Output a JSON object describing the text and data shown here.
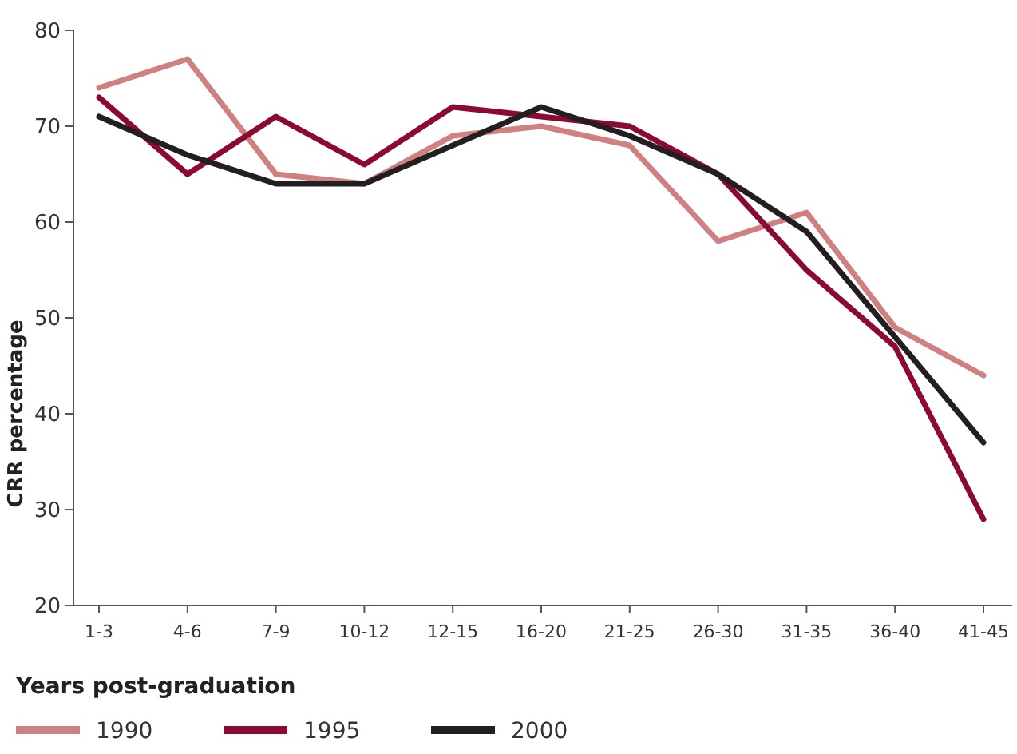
{
  "chart_data": {
    "type": "line",
    "xlabel": "Years post-graduation",
    "ylabel": "CRR percentage",
    "categories": [
      "1-3",
      "4-6",
      "7-9",
      "10-12",
      "12-15",
      "16-20",
      "21-25",
      "26-30",
      "31-35",
      "36-40",
      "41-45"
    ],
    "series": [
      {
        "name": "1990",
        "color": "#d08080",
        "values": [
          74,
          77,
          65,
          64,
          69,
          70,
          68,
          58,
          61,
          49,
          44
        ]
      },
      {
        "name": "1995",
        "color": "#8c0a32",
        "values": [
          73,
          65,
          71,
          66,
          72,
          71,
          70,
          65,
          55,
          47,
          29
        ]
      },
      {
        "name": "2000",
        "color": "#231f20",
        "values": [
          71,
          67,
          64,
          64,
          68,
          72,
          69,
          65,
          59,
          48,
          37
        ]
      }
    ],
    "ylim": [
      20,
      80
    ],
    "yticks": [
      20,
      30,
      40,
      50,
      60,
      70,
      80
    ],
    "grid": false,
    "legend": "bottom",
    "marker": "none",
    "line_style": "solid"
  }
}
